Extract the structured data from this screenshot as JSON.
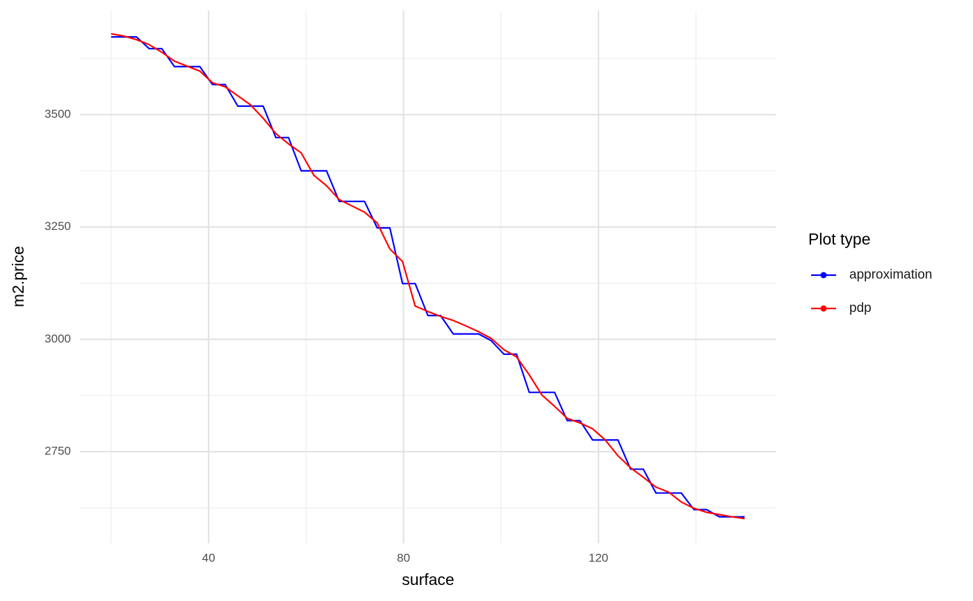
{
  "chart_data": {
    "type": "line",
    "x_label": "surface",
    "y_label": "m2.price",
    "legend_title": "Plot type",
    "legend_position": "right",
    "x": [
      20,
      22.6,
      25.2,
      27.8,
      30.4,
      33,
      35.6,
      38.2,
      40.8,
      43.4,
      46,
      48.6,
      51.2,
      53.8,
      56.4,
      59,
      61.6,
      64.2,
      66.8,
      69.4,
      72,
      74.6,
      77.2,
      79.8,
      82.4,
      85,
      87.6,
      90.2,
      92.8,
      95.4,
      98,
      100.6,
      103.2,
      105.8,
      108.4,
      111,
      113.6,
      116.2,
      118.8,
      121.4,
      124,
      126.6,
      129.2,
      131.8,
      134.4,
      137,
      139.6,
      142.2,
      144.8,
      147.4,
      150
    ],
    "series": [
      {
        "name": "approximation",
        "color": "#0000ff",
        "values": [
          3673,
          3673,
          3673,
          3647,
          3647,
          3607,
          3607,
          3607,
          3567,
          3567,
          3519,
          3519,
          3519,
          3449,
          3449,
          3375,
          3375,
          3375,
          3307,
          3307,
          3307,
          3248,
          3248,
          3124,
          3124,
          3053,
          3053,
          3012,
          3012,
          3012,
          2997,
          2967,
          2967,
          2882,
          2882,
          2882,
          2819,
          2819,
          2776,
          2776,
          2776,
          2711,
          2711,
          2658,
          2658,
          2658,
          2621,
          2621,
          2605,
          2605,
          2605
        ]
      },
      {
        "name": "pdp",
        "color": "#ff0000",
        "values": [
          3680,
          3675,
          3667,
          3656,
          3639,
          3619,
          3608,
          3597,
          3571,
          3562,
          3542,
          3522,
          3492,
          3458,
          3435,
          3415,
          3365,
          3342,
          3311,
          3297,
          3283,
          3259,
          3201,
          3173,
          3074,
          3062,
          3051,
          3042,
          3030,
          3017,
          3002,
          2977,
          2961,
          2921,
          2876,
          2851,
          2824,
          2814,
          2801,
          2776,
          2741,
          2714,
          2693,
          2671,
          2660,
          2638,
          2624,
          2615,
          2610,
          2605,
          2601
        ]
      }
    ],
    "xlim": [
      13.6,
      156.5
    ],
    "ylim": [
      2546,
      3732
    ],
    "xticks": [
      40,
      80,
      120
    ],
    "yticks": [
      2750,
      3000,
      3250,
      3500
    ],
    "minor_xticks": [
      20,
      60,
      100,
      140
    ],
    "minor_yticks": [
      2625,
      2875,
      3125,
      3375,
      3625
    ],
    "grid": true
  }
}
